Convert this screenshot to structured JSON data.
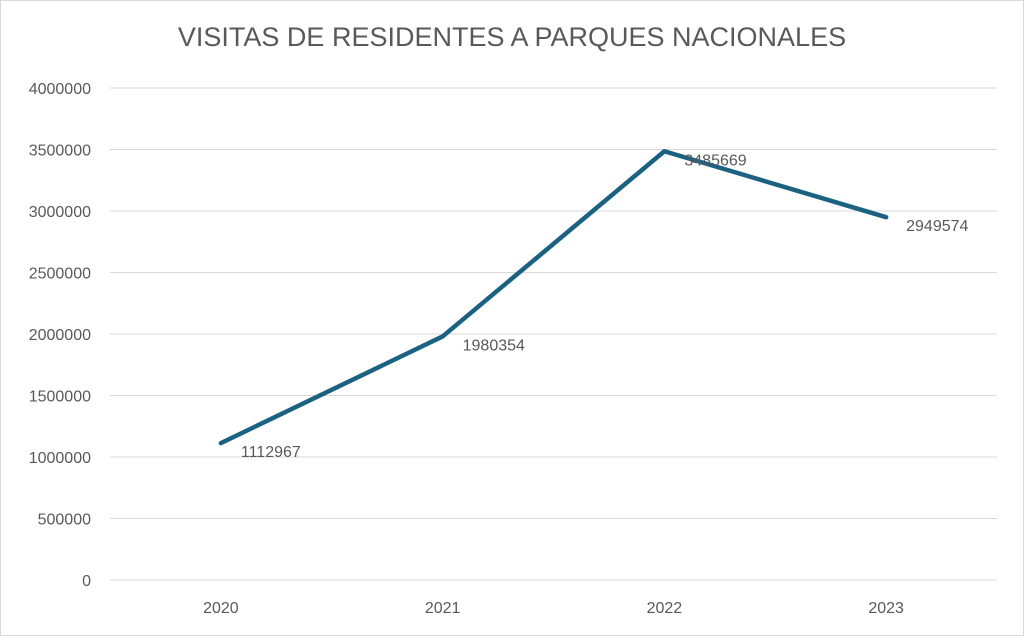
{
  "chart_data": {
    "type": "line",
    "title": "VISITAS DE RESIDENTES A PARQUES NACIONALES",
    "categories": [
      "2020",
      "2021",
      "2022",
      "2023"
    ],
    "series": [
      {
        "values": [
          1112967,
          1980354,
          3485669,
          2949574
        ]
      }
    ],
    "data_labels": [
      "1112967",
      "1980354",
      "3485669",
      "2949574"
    ],
    "ylim": [
      0,
      4000000
    ],
    "yticks": [
      0,
      500000,
      1000000,
      1500000,
      2000000,
      2500000,
      3000000,
      3500000,
      4000000
    ],
    "ytick_labels": [
      "0",
      "500000",
      "1000000",
      "1500000",
      "2000000",
      "2500000",
      "3000000",
      "3500000",
      "4000000"
    ],
    "grid": true,
    "legend": "none",
    "line_color": "#1b6282",
    "xlabel": "",
    "ylabel": ""
  }
}
